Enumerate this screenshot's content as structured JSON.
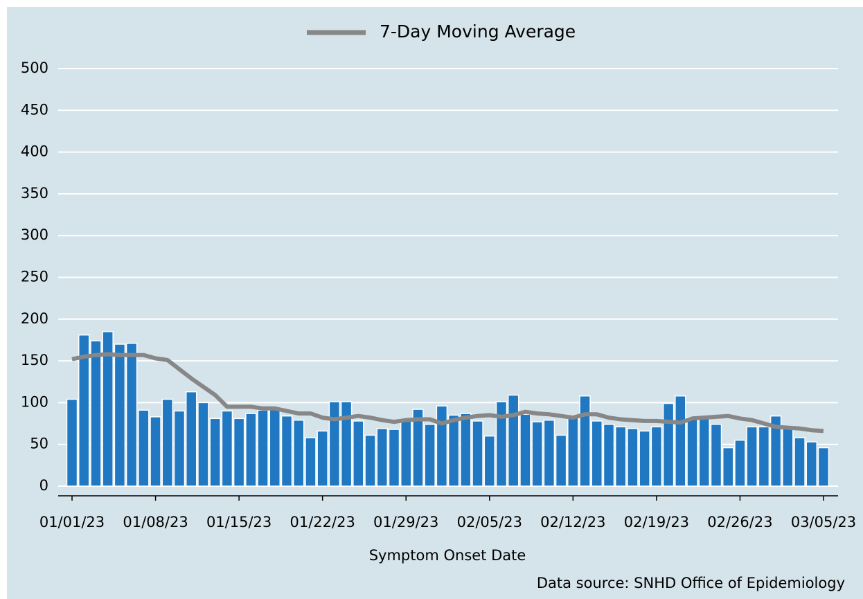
{
  "chart_data": {
    "type": "bar",
    "xlabel": "Symptom Onset Date",
    "source": "Data source: SNHD Office of Epidemiology",
    "categories": [
      "01/01/23",
      null,
      null,
      null,
      null,
      null,
      null,
      "01/08/23",
      null,
      null,
      null,
      null,
      null,
      null,
      "01/15/23",
      null,
      null,
      null,
      null,
      null,
      null,
      "01/22/23",
      null,
      null,
      null,
      null,
      null,
      null,
      "01/29/23",
      null,
      null,
      null,
      null,
      null,
      null,
      "02/05/23",
      null,
      null,
      null,
      null,
      null,
      null,
      "02/12/23",
      null,
      null,
      null,
      null,
      null,
      null,
      "02/19/23",
      null,
      null,
      null,
      null,
      null,
      null,
      "02/26/23",
      null,
      null,
      null,
      null,
      null,
      null,
      "03/05/23"
    ],
    "series": [
      {
        "type": "bar",
        "color": "#1f78c1",
        "values": [
          104,
          181,
          174,
          185,
          170,
          171,
          91,
          83,
          104,
          90,
          113,
          100,
          81,
          90,
          81,
          87,
          91,
          92,
          84,
          79,
          58,
          66,
          101,
          101,
          78,
          61,
          69,
          68,
          79,
          92,
          74,
          96,
          85,
          87,
          78,
          60,
          101,
          109,
          86,
          77,
          79,
          61,
          82,
          108,
          78,
          74,
          71,
          69,
          66,
          71,
          99,
          108,
          82,
          81,
          74,
          46,
          55,
          71,
          71,
          84,
          71,
          58,
          53,
          46
        ]
      },
      {
        "type": "line",
        "name": "7-Day Moving Average",
        "color": "#878787",
        "values": [
          152,
          155,
          157,
          158,
          157,
          157,
          157,
          153,
          151,
          140,
          129,
          119,
          109,
          95,
          95,
          95,
          93,
          93,
          90,
          87,
          87,
          82,
          80,
          82,
          84,
          82,
          79,
          77,
          79,
          80,
          80,
          75,
          79,
          82,
          84,
          85,
          83,
          85,
          89,
          87,
          86,
          84,
          82,
          86,
          86,
          82,
          80,
          79,
          78,
          78,
          77,
          76,
          81,
          82,
          83,
          84,
          81,
          79,
          75,
          71,
          70,
          69,
          67,
          66
        ]
      }
    ],
    "ylim": [
      0,
      500
    ],
    "yticks": [
      0,
      50,
      100,
      150,
      200,
      250,
      300,
      350,
      400,
      450,
      500
    ],
    "grid": true,
    "legend": "top"
  }
}
